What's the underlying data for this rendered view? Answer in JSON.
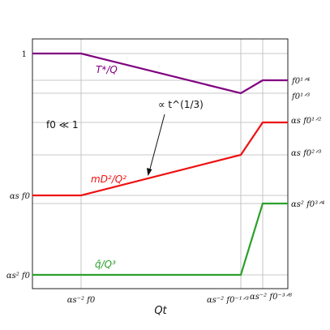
{
  "chart_data": {
    "type": "line",
    "title": "",
    "xlabel": "Qt",
    "ylabel": "",
    "grid": true,
    "x_ticks": [
      "αs⁻² f0",
      "αs⁻² f0⁻¹ᐟ³",
      "αs⁻² f0⁻³ᐟ⁸"
    ],
    "y_ticks_left": [
      "1",
      "αs f0",
      "αs² f0"
    ],
    "y_ticks_right": [
      "f0¹ᐟ⁴",
      "f0¹ᐟ³",
      "αs f0¹ᐟ²",
      "αs f0²ᐟ³",
      "αs² f0³ᐟ⁴"
    ],
    "series": [
      {
        "name": "T*/Q",
        "color": "#800080",
        "points": [
          [
            "start",
            "1"
          ],
          [
            "αs⁻² f0",
            "1"
          ],
          [
            "αs⁻² f0⁻¹ᐟ³",
            "f0¹ᐟ³"
          ],
          [
            "αs⁻² f0⁻³ᐟ⁸",
            "f0¹ᐟ⁴"
          ],
          [
            "end",
            "f0¹ᐟ⁴"
          ]
        ]
      },
      {
        "name": "mD²/Q²",
        "color": "#ee1111",
        "points": [
          [
            "start",
            "αs f0"
          ],
          [
            "αs⁻² f0",
            "αs f0"
          ],
          [
            "αs⁻² f0⁻¹ᐟ³",
            "αs f0²ᐟ³"
          ],
          [
            "αs⁻² f0⁻³ᐟ⁸",
            "αs f0¹ᐟ²"
          ],
          [
            "end",
            "αs f0¹ᐟ²"
          ]
        ]
      },
      {
        "name": "q̂/Q³",
        "color": "#2ca02c",
        "points": [
          [
            "start",
            "αs² f0"
          ],
          [
            "αs⁻² f0⁻¹ᐟ³",
            "αs² f0"
          ],
          [
            "αs⁻² f0⁻³ᐟ⁸",
            "αs² f0³ᐟ⁴"
          ],
          [
            "end",
            "αs² f0³ᐟ⁴"
          ]
        ]
      }
    ],
    "annotations": {
      "regime": "f0 ≪ 1",
      "scaling": "∝ t^(1/3)"
    }
  }
}
